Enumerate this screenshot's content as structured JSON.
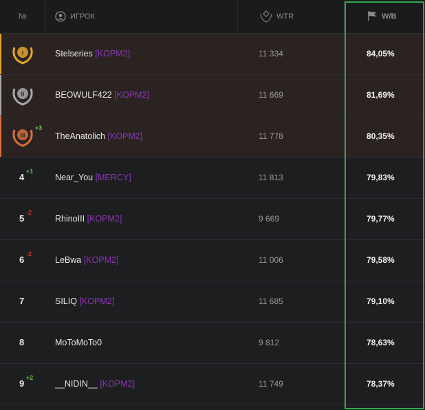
{
  "table": {
    "headers": {
      "rank": "№",
      "player": "ИГРОК",
      "wtr": "WTR",
      "winrate": "W/B"
    },
    "rows": [
      {
        "rank": "I",
        "name": "Stelseries",
        "clan": "[KOPM2]",
        "wtr": "11 334",
        "winrate": "84,05%"
      },
      {
        "rank": "II",
        "name": "BEOWULF422",
        "clan": "[KOPM2]",
        "wtr": "11 669",
        "winrate": "81,69%"
      },
      {
        "rank": "III",
        "change": "+3",
        "name": "TheAnatolich",
        "clan": "[KOPM2]",
        "wtr": "11 778",
        "winrate": "80,35%"
      },
      {
        "rank": "4",
        "change": "+1",
        "name": "Near_You",
        "clan": "[MERCY]",
        "wtr": "11 813",
        "winrate": "79,83%"
      },
      {
        "rank": "5",
        "change": "-2",
        "name": "RhinoIII",
        "clan": "[KOPM2]",
        "wtr": "9 669",
        "winrate": "79,77%"
      },
      {
        "rank": "6",
        "change": "-2",
        "name": "LeBwa",
        "clan": "[KOPM2]",
        "wtr": "11 006",
        "winrate": "79,58%"
      },
      {
        "rank": "7",
        "name": "SILIQ",
        "clan": "[KOPM2]",
        "wtr": "11 685",
        "winrate": "79,10%"
      },
      {
        "rank": "8",
        "name": "MoToMoTo0",
        "wtr": "9 812",
        "winrate": "78,63%"
      },
      {
        "rank": "9",
        "change": "+2",
        "name": "__NIDIN__",
        "clan": "[KOPM2]",
        "wtr": "11 749",
        "winrate": "78,37%"
      }
    ]
  }
}
